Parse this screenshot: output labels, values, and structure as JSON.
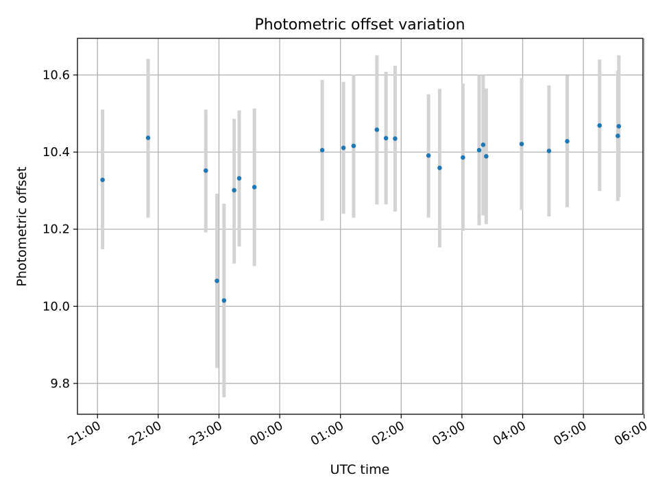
{
  "chart_data": {
    "type": "scatter",
    "title": "Photometric offset variation",
    "xlabel": "UTC time",
    "ylabel": "Photometric offset",
    "grid": true,
    "x_range_hours": [
      20.67,
      29.98
    ],
    "ylim": [
      9.72,
      10.695
    ],
    "x_ticks": [
      {
        "hour": 21,
        "label": "21:00"
      },
      {
        "hour": 22,
        "label": "22:00"
      },
      {
        "hour": 23,
        "label": "23:00"
      },
      {
        "hour": 24,
        "label": "00:00"
      },
      {
        "hour": 25,
        "label": "01:00"
      },
      {
        "hour": 26,
        "label": "02:00"
      },
      {
        "hour": 27,
        "label": "03:00"
      },
      {
        "hour": 28,
        "label": "04:00"
      },
      {
        "hour": 29,
        "label": "05:00"
      },
      {
        "hour": 30,
        "label": "06:00"
      }
    ],
    "y_ticks": [
      {
        "value": 9.8,
        "label": "9.8"
      },
      {
        "value": 10.0,
        "label": "10.0"
      },
      {
        "value": 10.2,
        "label": "10.2"
      },
      {
        "value": 10.4,
        "label": "10.4"
      },
      {
        "value": 10.6,
        "label": "10.6"
      }
    ],
    "colors": {
      "point": "#1f77b4",
      "errorbar": "#d3d3d3",
      "grid": "#b0b0b0"
    },
    "points": [
      {
        "time": "21:05",
        "y": 10.328,
        "lo": 10.148,
        "hi": 10.51
      },
      {
        "time": "21:50",
        "y": 10.437,
        "lo": 10.23,
        "hi": 10.642
      },
      {
        "time": "22:47",
        "y": 10.352,
        "lo": 10.192,
        "hi": 10.51
      },
      {
        "time": "22:58",
        "y": 10.066,
        "lo": 9.84,
        "hi": 10.292
      },
      {
        "time": "23:05",
        "y": 10.015,
        "lo": 9.764,
        "hi": 10.266
      },
      {
        "time": "23:15",
        "y": 10.301,
        "lo": 10.111,
        "hi": 10.486
      },
      {
        "time": "23:20",
        "y": 10.332,
        "lo": 10.155,
        "hi": 10.508
      },
      {
        "time": "23:35",
        "y": 10.309,
        "lo": 10.104,
        "hi": 10.513
      },
      {
        "time": "00:42",
        "y": 10.405,
        "lo": 10.222,
        "hi": 10.587
      },
      {
        "time": "01:03",
        "y": 10.411,
        "lo": 10.24,
        "hi": 10.582
      },
      {
        "time": "01:13",
        "y": 10.416,
        "lo": 10.23,
        "hi": 10.601
      },
      {
        "time": "01:36",
        "y": 10.458,
        "lo": 10.264,
        "hi": 10.651
      },
      {
        "time": "01:45",
        "y": 10.436,
        "lo": 10.264,
        "hi": 10.608
      },
      {
        "time": "01:54",
        "y": 10.435,
        "lo": 10.246,
        "hi": 10.624
      },
      {
        "time": "02:27",
        "y": 10.391,
        "lo": 10.23,
        "hi": 10.55
      },
      {
        "time": "02:38",
        "y": 10.359,
        "lo": 10.153,
        "hi": 10.564
      },
      {
        "time": "03:01",
        "y": 10.386,
        "lo": 10.196,
        "hi": 10.578
      },
      {
        "time": "03:17",
        "y": 10.405,
        "lo": 10.21,
        "hi": 10.6
      },
      {
        "time": "03:21",
        "y": 10.419,
        "lo": 10.236,
        "hi": 10.6
      },
      {
        "time": "03:24",
        "y": 10.389,
        "lo": 10.213,
        "hi": 10.565
      },
      {
        "time": "03:59",
        "y": 10.421,
        "lo": 10.25,
        "hi": 10.592
      },
      {
        "time": "04:26",
        "y": 10.403,
        "lo": 10.233,
        "hi": 10.573
      },
      {
        "time": "04:44",
        "y": 10.428,
        "lo": 10.257,
        "hi": 10.599
      },
      {
        "time": "05:16",
        "y": 10.469,
        "lo": 10.299,
        "hi": 10.64
      },
      {
        "time": "05:34",
        "y": 10.442,
        "lo": 10.273,
        "hi": 10.611
      },
      {
        "time": "05:35",
        "y": 10.467,
        "lo": 10.283,
        "hi": 10.651
      }
    ]
  }
}
